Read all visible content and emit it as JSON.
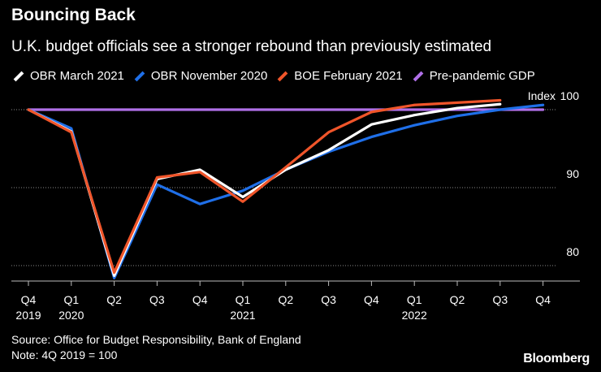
{
  "header": {
    "title": "Bouncing Back",
    "subtitle": "U.K. budget officials see a stronger rebound than previously estimated"
  },
  "footer": {
    "source": "Source: Office for Budget Responsibility, Bank of England",
    "note": "Note: 4Q 2019 = 100",
    "brand": "Bloomberg"
  },
  "chart_data": {
    "type": "line",
    "title": "Bouncing Back",
    "subtitle": "U.K. budget officials see a stronger rebound than previously estimated",
    "ylabel": "Index",
    "ylim": [
      78,
      101.5
    ],
    "yticks": [
      80,
      90,
      100
    ],
    "y_axis_position": "right",
    "grid": "dotted horizontal",
    "legend_position": "top",
    "categories": [
      "Q4 2019",
      "Q1 2020",
      "Q2 2020",
      "Q3 2020",
      "Q4 2020",
      "Q1 2021",
      "Q2 2021",
      "Q3 2021",
      "Q4 2021",
      "Q1 2022",
      "Q2 2022",
      "Q3 2022",
      "Q4 2022"
    ],
    "xtick_labels": [
      "Q4",
      "Q1",
      "Q2",
      "Q3",
      "Q4",
      "Q1",
      "Q2",
      "Q3",
      "Q4",
      "Q1",
      "Q2",
      "Q3",
      "Q4"
    ],
    "year_labels": [
      {
        "index": 0,
        "label": "2019"
      },
      {
        "index": 1,
        "label": "2020"
      },
      {
        "index": 5,
        "label": "2021"
      },
      {
        "index": 9,
        "label": "2022"
      }
    ],
    "series": [
      {
        "name": "Pre-pandemic GDP",
        "color": "#b070e8",
        "values": [
          100,
          100,
          100,
          100,
          100,
          100,
          100,
          100,
          100,
          100,
          100,
          100,
          100
        ]
      },
      {
        "name": "OBR November 2020",
        "color": "#1f6fe8",
        "values": [
          100,
          97.6,
          78.4,
          90.4,
          87.9,
          89.6,
          92.3,
          94.6,
          96.5,
          98.0,
          99.2,
          100.0,
          100.6
        ]
      },
      {
        "name": "OBR March 2021",
        "color": "#ffffff",
        "values": [
          100,
          97.2,
          78.7,
          91.1,
          92.3,
          88.8,
          92.3,
          94.8,
          98.1,
          99.3,
          100.2,
          100.7,
          null
        ]
      },
      {
        "name": "BOE February 2021",
        "color": "#f0552a",
        "values": [
          100,
          97.1,
          79.1,
          91.3,
          92.0,
          88.2,
          92.6,
          97.1,
          99.7,
          100.6,
          100.9,
          101.2,
          null
        ]
      }
    ],
    "legend_order": [
      "OBR March 2021",
      "OBR November 2020",
      "BOE February 2021",
      "Pre-pandemic GDP"
    ]
  }
}
